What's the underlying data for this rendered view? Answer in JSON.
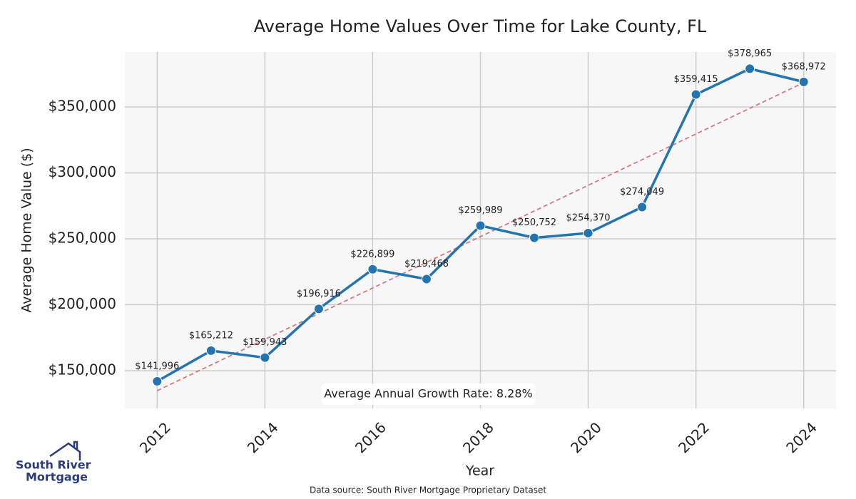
{
  "chart_data": {
    "type": "line",
    "title": "Average Home Values Over Time for Lake County, FL",
    "x_label": "Year",
    "y_label": "Average Home Value ($)",
    "x": [
      2012,
      2013,
      2014,
      2015,
      2016,
      2017,
      2018,
      2019,
      2020,
      2021,
      2022,
      2023,
      2024
    ],
    "series": [
      {
        "color": "#2474b0",
        "values": [
          141996,
          165212,
          159943,
          196916,
          226899,
          219468,
          259989,
          250752,
          254370,
          274049,
          359415,
          378965,
          368972
        ],
        "value_labels": [
          "$141,996",
          "$165,212",
          "$159,943",
          "$196,916",
          "$226,899",
          "$219,468",
          "$259,989",
          "$250,752",
          "$254,370",
          "$274,049",
          "$359,415",
          "$378,965",
          "$368,972"
        ]
      }
    ],
    "trend": {
      "color": "#d47a7a",
      "x": [
        2012,
        2024
      ],
      "values": [
        134900,
        368400
      ]
    },
    "annotation": "Average Annual Growth Rate: 8.28%",
    "xlim": [
      2011.4,
      2024.6
    ],
    "ylim": [
      121400,
      391600
    ],
    "xticks": [
      2012,
      2014,
      2016,
      2018,
      2020,
      2022,
      2024
    ],
    "yticks": [
      {
        "value": 150000,
        "label": "$150,000"
      },
      {
        "value": 200000,
        "label": "$200,000"
      },
      {
        "value": 250000,
        "label": "$250,000"
      },
      {
        "value": 300000,
        "label": "$300,000"
      },
      {
        "value": 350000,
        "label": "$350,000"
      }
    ],
    "grid": true
  },
  "logo": {
    "lines": [
      "South River",
      "Mortgage"
    ]
  },
  "source": "Data source: South River Mortgage Proprietary Dataset"
}
